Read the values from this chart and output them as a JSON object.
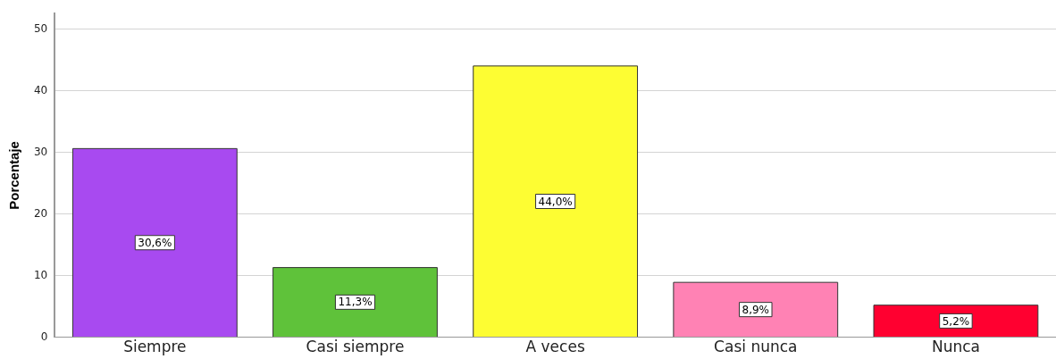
{
  "chart_data": {
    "type": "bar",
    "ylabel": "Porcentaje",
    "categories": [
      "Siempre",
      "Casi siempre",
      "A veces",
      "Casi nunca",
      "Nunca"
    ],
    "values": [
      30.6,
      11.3,
      44.0,
      8.9,
      5.2
    ],
    "value_labels": [
      "30,6%",
      "11,3%",
      "44,0%",
      "8,9%",
      "5,2%"
    ],
    "colors": [
      "#a84af0",
      "#5fc23a",
      "#fdfd33",
      "#ff82b4",
      "#ff0030"
    ],
    "ylim": [
      0,
      52.5
    ],
    "yticks": [
      0,
      10,
      20,
      30,
      40,
      50
    ],
    "grid": "y",
    "legend": false
  }
}
